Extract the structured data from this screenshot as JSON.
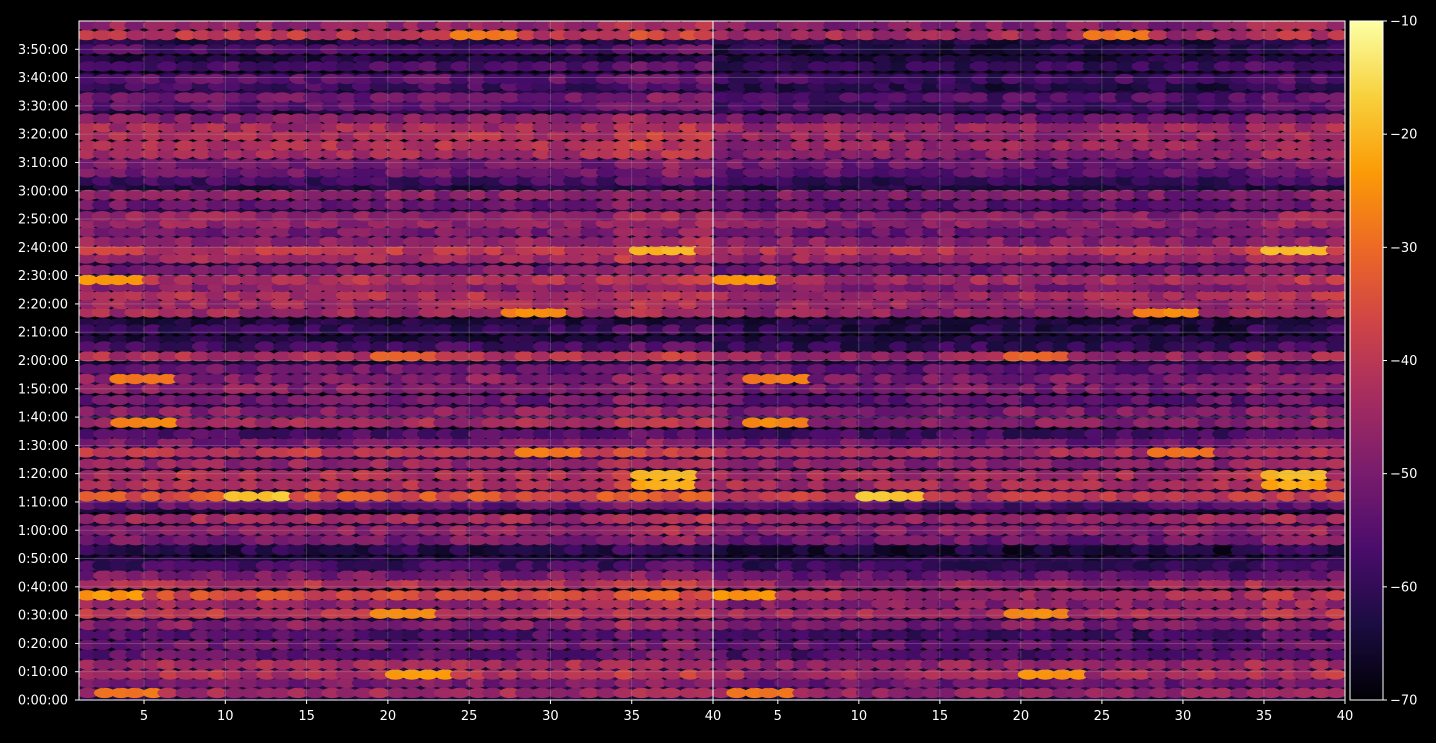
{
  "chart_data": {
    "type": "heatmap",
    "title": "",
    "xlabel": "",
    "ylabel": "",
    "panels": [
      {
        "name": "",
        "xlim": [
          1,
          40
        ],
        "xticks": [
          5,
          10,
          15,
          20,
          25,
          30,
          35,
          40
        ]
      },
      {
        "name": "",
        "xlim": [
          1,
          40
        ],
        "xticks": [
          5,
          10,
          15,
          20,
          25,
          30,
          35,
          40
        ]
      }
    ],
    "y_axis": {
      "unit": "h:mm:ss",
      "range_minutes": [
        0,
        240
      ],
      "tick_labels": [
        "0:00:00",
        "0:10:00",
        "0:20:00",
        "0:30:00",
        "0:40:00",
        "0:50:00",
        "1:00:00",
        "1:10:00",
        "1:20:00",
        "1:30:00",
        "1:40:00",
        "1:50:00",
        "2:00:00",
        "2:10:00",
        "2:20:00",
        "2:30:00",
        "2:40:00",
        "2:50:00",
        "3:00:00",
        "3:10:00",
        "3:20:00",
        "3:30:00",
        "3:40:00",
        "3:50:00"
      ]
    },
    "grid": true,
    "colormap": "inferno",
    "colors": {
      "background": "#000000",
      "axis": "#ffffff",
      "grid": "#b0b0b0",
      "cmap_stops": [
        "#000004",
        "#1b0c41",
        "#4a0c6b",
        "#781c6d",
        "#a52c60",
        "#cf4446",
        "#ed6925",
        "#fb9b06",
        "#f7d13d",
        "#fcffa4"
      ]
    },
    "colorbar": {
      "range": [
        -70,
        -10
      ],
      "tick_values": [
        -70,
        -60,
        -50,
        -40,
        -30,
        -20,
        -10
      ],
      "tick_labels": [
        "−70",
        "−60",
        "−50",
        "−40",
        "−30",
        "−20",
        "−10"
      ]
    },
    "bands": [
      {
        "t": 2.5,
        "panel1": -44,
        "panel2": -46,
        "x_hot": 4,
        "x_hot_value": -28
      },
      {
        "t": 6,
        "panel1": -50,
        "panel2": -52
      },
      {
        "t": 9,
        "panel1": -42,
        "panel2": -44,
        "x_hot": 22,
        "x_hot_value": -24
      },
      {
        "t": 12.5,
        "panel1": -44,
        "panel2": -46
      },
      {
        "t": 16,
        "panel1": -54,
        "panel2": -56
      },
      {
        "t": 19.5,
        "panel1": -52,
        "panel2": -54
      },
      {
        "t": 23,
        "panel1": -56,
        "panel2": -58
      },
      {
        "t": 26.5,
        "panel1": -48,
        "panel2": -50
      },
      {
        "t": 30.5,
        "panel1": -40,
        "panel2": -44,
        "x_hot": 21,
        "x_hot_value": -26
      },
      {
        "t": 34,
        "panel1": -46,
        "panel2": -48
      },
      {
        "t": 37,
        "panel1": -36,
        "panel2": -44,
        "x_hot": 3,
        "x_hot_value": -24
      },
      {
        "t": 41,
        "panel1": -42,
        "panel2": -46
      },
      {
        "t": 44,
        "panel1": -50,
        "panel2": -54
      },
      {
        "t": 47.5,
        "panel1": -58,
        "panel2": -60
      },
      {
        "t": 53,
        "panel1": -62,
        "panel2": -64
      },
      {
        "t": 56.5,
        "panel1": -50,
        "panel2": -52
      },
      {
        "t": 60,
        "panel1": -46,
        "panel2": -48
      },
      {
        "t": 64,
        "panel1": -44,
        "panel2": -46
      },
      {
        "t": 69,
        "panel1": -54,
        "panel2": -56
      },
      {
        "t": 72,
        "panel1": -34,
        "panel2": -40,
        "x_hot": 12,
        "x_hot_value": -18
      },
      {
        "t": 76,
        "panel1": -42,
        "panel2": -44,
        "x_hot": 37,
        "x_hot_value": -22
      },
      {
        "t": 79.5,
        "panel1": -42,
        "panel2": -44,
        "x_hot": 37,
        "x_hot_value": -20
      },
      {
        "t": 83.5,
        "panel1": -46,
        "panel2": -48
      },
      {
        "t": 87.5,
        "panel1": -40,
        "panel2": -44,
        "x_hot": 30,
        "x_hot_value": -28
      },
      {
        "t": 91,
        "panel1": -50,
        "panel2": -52
      },
      {
        "t": 94,
        "panel1": -56,
        "panel2": -58
      },
      {
        "t": 98,
        "panel1": -44,
        "panel2": -48,
        "x_hot": 5,
        "x_hot_value": -26
      },
      {
        "t": 102,
        "panel1": -48,
        "panel2": -50
      },
      {
        "t": 106,
        "panel1": -52,
        "panel2": -54
      },
      {
        "t": 110,
        "panel1": -48,
        "panel2": -50
      },
      {
        "t": 113.5,
        "panel1": -48,
        "panel2": -50,
        "x_hot": 5,
        "x_hot_value": -28
      },
      {
        "t": 117,
        "panel1": -52,
        "panel2": -54
      },
      {
        "t": 121.5,
        "panel1": -42,
        "panel2": -46,
        "x_hot": 21,
        "x_hot_value": -32
      },
      {
        "t": 125,
        "panel1": -58,
        "panel2": -60
      },
      {
        "t": 131,
        "panel1": -60,
        "panel2": -62
      },
      {
        "t": 137,
        "panel1": -44,
        "panel2": -46,
        "x_hot": 29,
        "x_hot_value": -26
      },
      {
        "t": 140,
        "panel1": -44,
        "panel2": -46
      },
      {
        "t": 143,
        "panel1": -42,
        "panel2": -44
      },
      {
        "t": 146,
        "panel1": -48,
        "panel2": -50
      },
      {
        "t": 148.5,
        "panel1": -42,
        "panel2": -44,
        "x_hot": 3,
        "x_hot_value": -24
      },
      {
        "t": 152,
        "panel1": -50,
        "panel2": -52
      },
      {
        "t": 156,
        "panel1": -44,
        "panel2": -46
      },
      {
        "t": 159,
        "panel1": -40,
        "panel2": -42,
        "x_hot": 37,
        "x_hot_value": -20
      },
      {
        "t": 162,
        "panel1": -46,
        "panel2": -48
      },
      {
        "t": 165.5,
        "panel1": -50,
        "panel2": -52
      },
      {
        "t": 168.5,
        "panel1": -46,
        "panel2": -48
      },
      {
        "t": 171,
        "panel1": -46,
        "panel2": -48
      },
      {
        "t": 175,
        "panel1": -52,
        "panel2": -54
      },
      {
        "t": 178.5,
        "panel1": -48,
        "panel2": -50
      },
      {
        "t": 183.5,
        "panel1": -58,
        "panel2": -60
      },
      {
        "t": 186.5,
        "panel1": -52,
        "panel2": -54
      },
      {
        "t": 189.5,
        "panel1": -50,
        "panel2": -52
      },
      {
        "t": 193,
        "panel1": -44,
        "panel2": -48
      },
      {
        "t": 196,
        "panel1": -42,
        "panel2": -46
      },
      {
        "t": 199.5,
        "panel1": -42,
        "panel2": -46
      },
      {
        "t": 202.5,
        "panel1": -44,
        "panel2": -46
      },
      {
        "t": 205.5,
        "panel1": -48,
        "panel2": -52
      },
      {
        "t": 210,
        "panel1": -54,
        "panel2": -58
      },
      {
        "t": 213,
        "panel1": -52,
        "panel2": -56
      },
      {
        "t": 217,
        "panel1": -58,
        "panel2": -62
      },
      {
        "t": 219.5,
        "panel1": -54,
        "panel2": -58
      },
      {
        "t": 224,
        "panel1": -56,
        "panel2": -60
      },
      {
        "t": 230,
        "panel1": -56,
        "panel2": -62
      },
      {
        "t": 235,
        "panel1": -40,
        "panel2": -44,
        "x_hot": 26,
        "x_hot_value": -28
      },
      {
        "t": 238.5,
        "panel1": -46,
        "panel2": -48
      }
    ]
  }
}
